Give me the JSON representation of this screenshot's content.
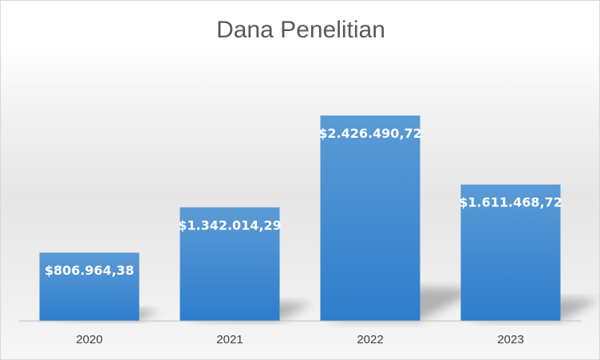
{
  "chart_data": {
    "type": "bar",
    "title": "Dana Penelitian",
    "categories": [
      "2020",
      "2021",
      "2022",
      "2023"
    ],
    "values": [
      806964.38,
      1342014.29,
      2426490.72,
      1611468.72
    ],
    "data_labels": [
      "$806.964,38",
      "$1.342.014,29",
      "$2.426.490,72",
      "$1.611.468,72"
    ],
    "ylim": [
      0,
      2700000
    ],
    "grid": false,
    "legend": "none",
    "colors": {
      "bar_top": "#5b9bd5",
      "bar_bottom": "#2e7dcc",
      "axis": "#bfbfbf"
    }
  }
}
